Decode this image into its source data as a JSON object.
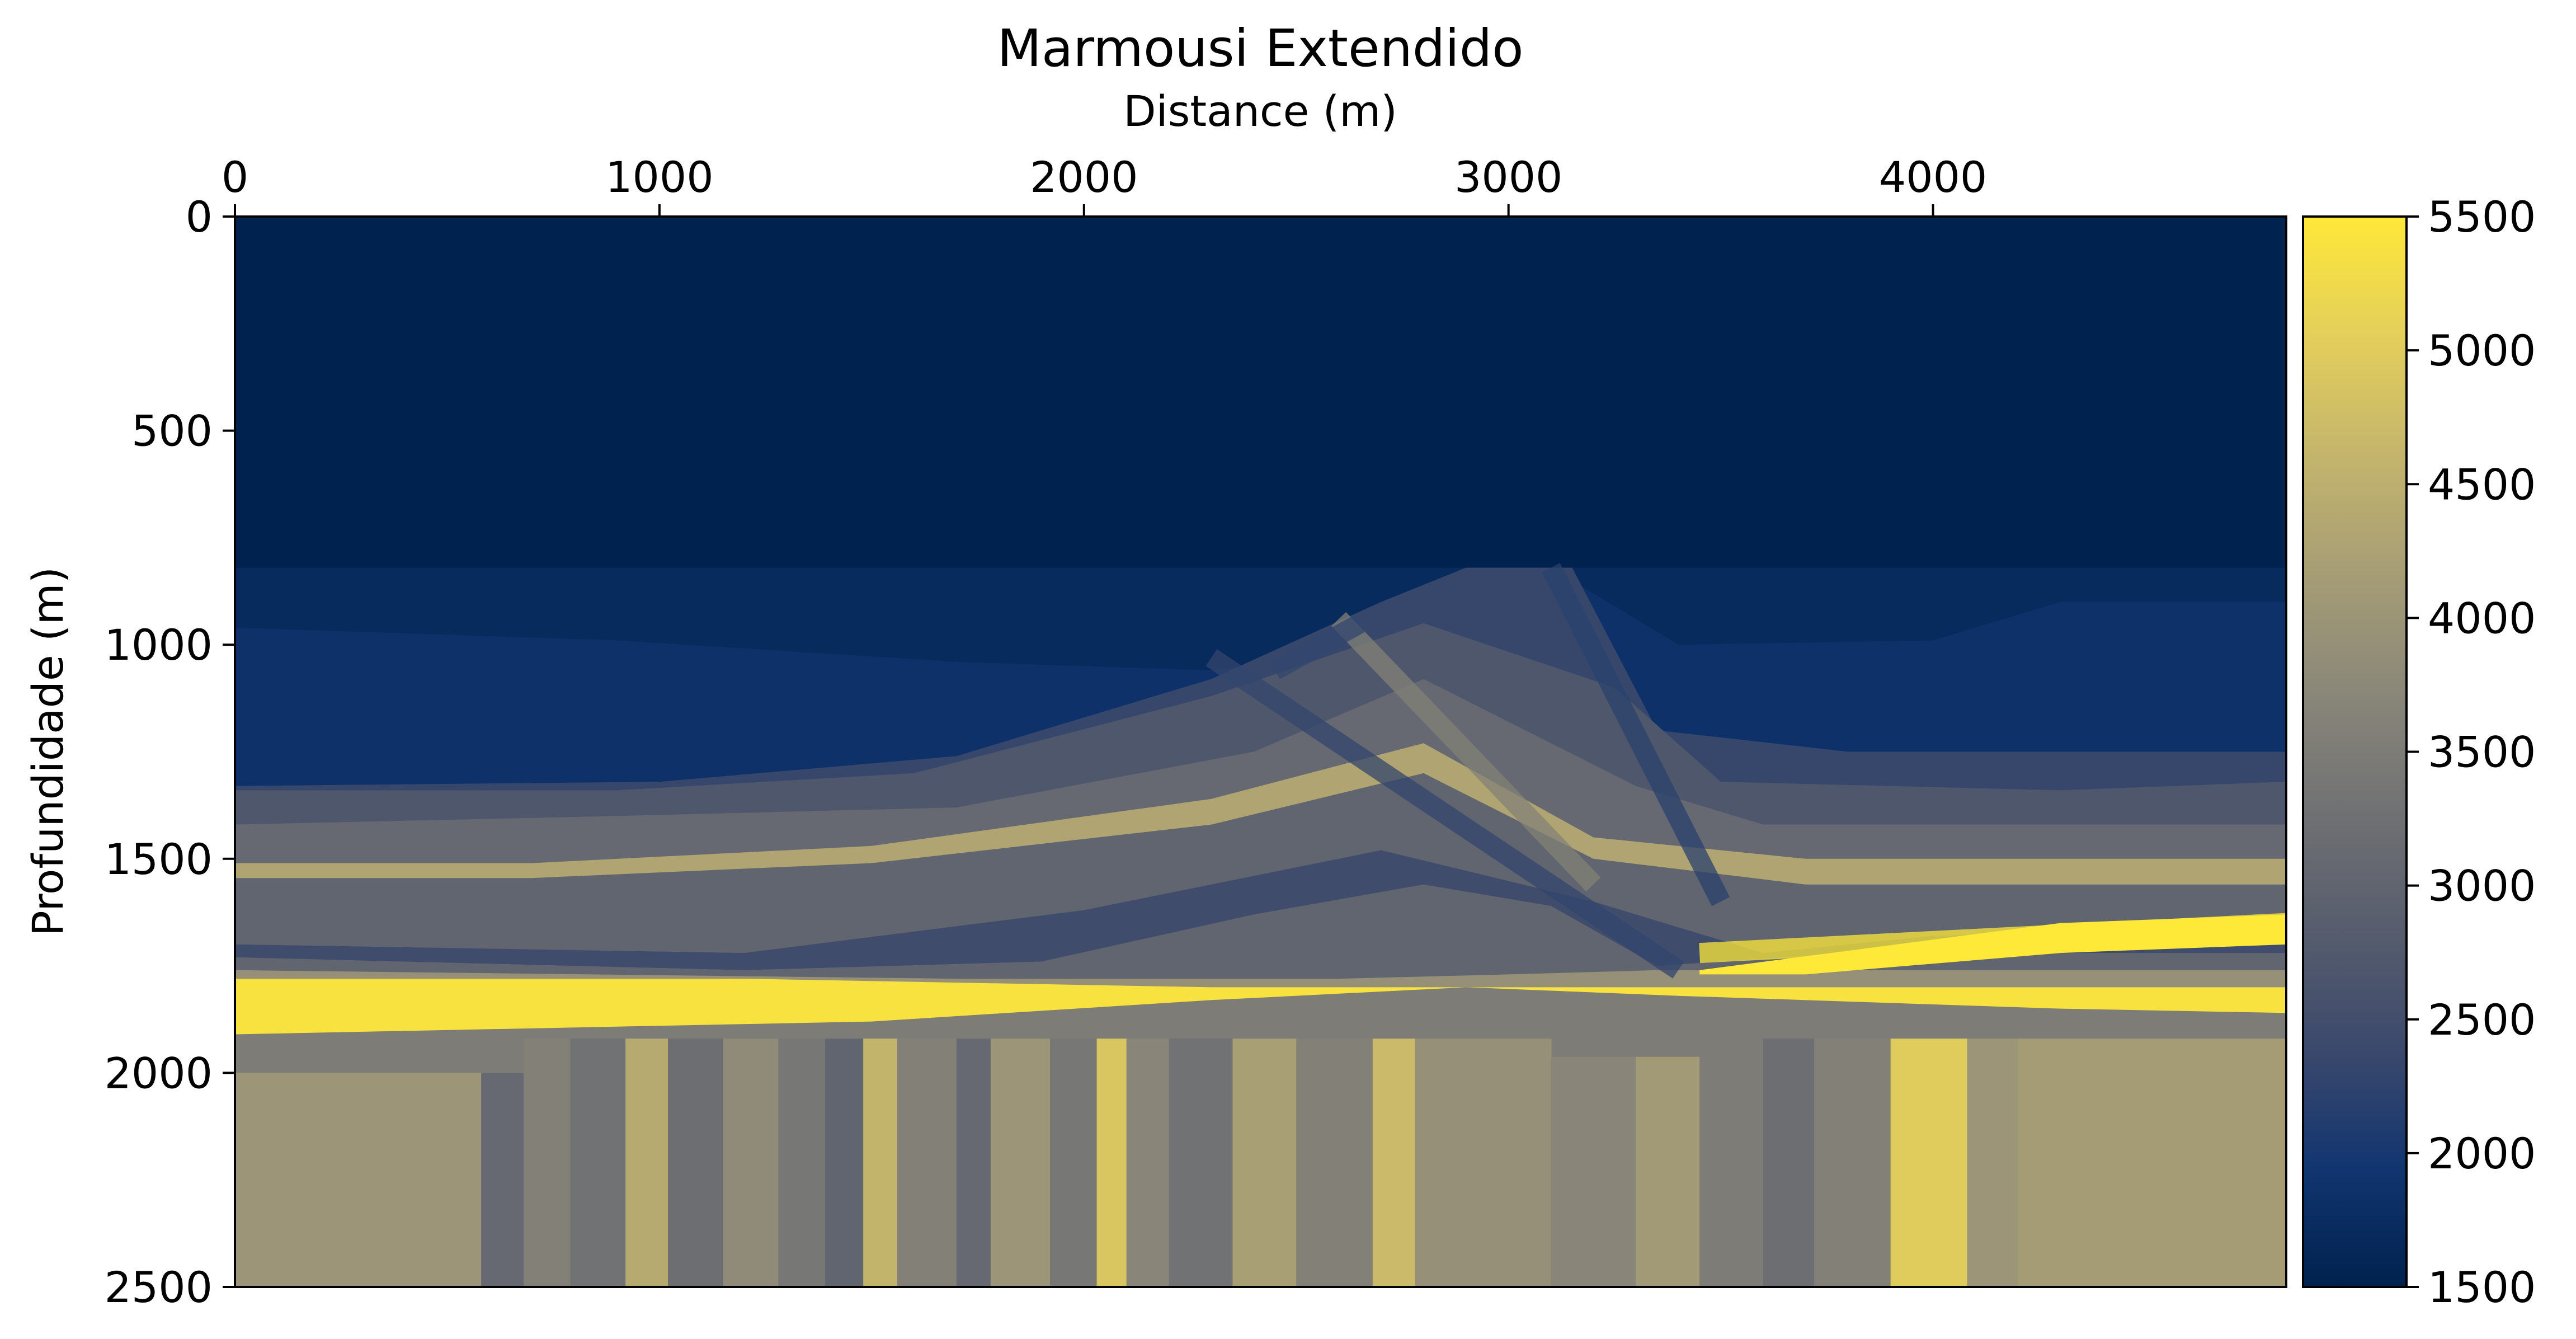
{
  "chart_data": {
    "type": "heatmap",
    "title": "Marmousi Extendido",
    "xlabel": "Distance (m)",
    "ylabel": "Profundidade (m)",
    "x_axis_position": "top",
    "xlim": [
      0,
      4832
    ],
    "ylim": [
      2500,
      0
    ],
    "xticks": [
      0,
      1000,
      2000,
      3000,
      4000
    ],
    "xtick_labels": [
      "0",
      "1000",
      "2000",
      "3000",
      "4000"
    ],
    "yticks": [
      0,
      500,
      1000,
      1500,
      2000,
      2500
    ],
    "ytick_labels": [
      "0",
      "500",
      "1000",
      "1500",
      "2000",
      "2500"
    ],
    "grid": false,
    "colormap": "cividis",
    "colorbar": {
      "range": [
        1500,
        5500
      ],
      "ticks": [
        1500,
        2000,
        2500,
        3000,
        3500,
        4000,
        4500,
        5000,
        5500
      ],
      "tick_labels": [
        "1500",
        "2000",
        "2500",
        "3000",
        "3500",
        "4000",
        "4500",
        "5000",
        "5500"
      ],
      "position": "right"
    },
    "colormap_stops": [
      "#00224e",
      "#123570",
      "#3b496c",
      "#575d6d",
      "#707173",
      "#8a8779",
      "#a69d75",
      "#c4b56c",
      "#e4cf5b",
      "#fee838"
    ],
    "layers": [
      {
        "name": "water",
        "top": [
          [
            0,
            0
          ],
          [
            4832,
            0
          ]
        ],
        "value": 1500
      },
      {
        "name": "upper-sediment-a",
        "top": [
          [
            0,
            820
          ],
          [
            1000,
            820
          ],
          [
            2300,
            820
          ],
          [
            3200,
            820
          ],
          [
            4100,
            820
          ],
          [
            4832,
            820
          ]
        ],
        "value": 1700
      },
      {
        "name": "upper-sediment-b",
        "top": [
          [
            0,
            960
          ],
          [
            900,
            990
          ],
          [
            1700,
            1040
          ],
          [
            2300,
            1060
          ],
          [
            2600,
            1020
          ],
          [
            2900,
            820
          ],
          [
            3100,
            820
          ],
          [
            3400,
            1000
          ],
          [
            4000,
            990
          ],
          [
            4300,
            900
          ],
          [
            4832,
            900
          ]
        ],
        "value": 1850
      },
      {
        "name": "upper-sediment-c",
        "top": [
          [
            0,
            1330
          ],
          [
            1000,
            1320
          ],
          [
            1700,
            1260
          ],
          [
            2300,
            1080
          ],
          [
            2700,
            900
          ],
          [
            2900,
            820
          ],
          [
            3150,
            820
          ],
          [
            3350,
            1200
          ],
          [
            3800,
            1250
          ],
          [
            4300,
            1250
          ],
          [
            4832,
            1250
          ]
        ],
        "value": 2350
      },
      {
        "name": "gray-sequence-a",
        "top": [
          [
            0,
            1340
          ],
          [
            900,
            1340
          ],
          [
            1600,
            1300
          ],
          [
            2300,
            1120
          ],
          [
            2800,
            950
          ],
          [
            3250,
            1100
          ],
          [
            3500,
            1320
          ],
          [
            4300,
            1340
          ],
          [
            4832,
            1320
          ]
        ],
        "value": 2700
      },
      {
        "name": "gray-sequence-b",
        "top": [
          [
            0,
            1420
          ],
          [
            900,
            1400
          ],
          [
            1700,
            1380
          ],
          [
            2400,
            1250
          ],
          [
            2800,
            1080
          ],
          [
            3300,
            1330
          ],
          [
            3600,
            1420
          ],
          [
            4400,
            1420
          ],
          [
            4832,
            1420
          ]
        ],
        "value": 3100
      },
      {
        "name": "tan-band-upper",
        "top": [
          [
            0,
            1510
          ],
          [
            700,
            1510
          ],
          [
            1500,
            1470
          ],
          [
            2300,
            1360
          ],
          [
            2800,
            1230
          ],
          [
            3200,
            1450
          ],
          [
            3700,
            1500
          ],
          [
            4400,
            1500
          ],
          [
            4832,
            1500
          ]
        ],
        "value": 4300
      },
      {
        "name": "gray-sequence-c",
        "top": [
          [
            0,
            1545
          ],
          [
            700,
            1545
          ],
          [
            1500,
            1510
          ],
          [
            2300,
            1420
          ],
          [
            2800,
            1300
          ],
          [
            3200,
            1500
          ],
          [
            3700,
            1560
          ],
          [
            4400,
            1560
          ],
          [
            4832,
            1560
          ]
        ],
        "value": 3000
      },
      {
        "name": "dark-wedge",
        "top": [
          [
            0,
            1700
          ],
          [
            1200,
            1720
          ],
          [
            2000,
            1620
          ],
          [
            2700,
            1480
          ],
          [
            3200,
            1600
          ],
          [
            3600,
            1720
          ],
          [
            4000,
            1680
          ],
          [
            4832,
            1660
          ]
        ],
        "value": 2450
      },
      {
        "name": "gray-sequence-d",
        "top": [
          [
            0,
            1730
          ],
          [
            1200,
            1760
          ],
          [
            1900,
            1740
          ],
          [
            2400,
            1630
          ],
          [
            2800,
            1560
          ],
          [
            3100,
            1610
          ],
          [
            3350,
            1750
          ],
          [
            3800,
            1720
          ],
          [
            4832,
            1720
          ]
        ],
        "value": 3000
      },
      {
        "name": "tan-dome",
        "top": [
          [
            0,
            1760
          ],
          [
            1700,
            1780
          ],
          [
            2600,
            1780
          ],
          [
            3000,
            1770
          ],
          [
            3350,
            1760
          ],
          [
            4300,
            1760
          ],
          [
            4832,
            1760
          ]
        ],
        "value": 3900
      },
      {
        "name": "bright-reservoir",
        "top": [
          [
            0,
            1780
          ],
          [
            1200,
            1780
          ],
          [
            2300,
            1800
          ],
          [
            3200,
            1800
          ],
          [
            4000,
            1800
          ],
          [
            4832,
            1800
          ]
        ],
        "value": 5400
      },
      {
        "name": "gray-sequence-e",
        "top": [
          [
            0,
            1910
          ],
          [
            1500,
            1880
          ],
          [
            2300,
            1830
          ],
          [
            2900,
            1800
          ],
          [
            3400,
            1820
          ],
          [
            4300,
            1850
          ],
          [
            4832,
            1860
          ]
        ],
        "value": 3500
      },
      {
        "name": "deep-basement",
        "top": [
          [
            0,
            2000
          ],
          [
            1000,
            2000
          ],
          [
            2000,
            2000
          ],
          [
            3000,
            2000
          ],
          [
            4000,
            2000
          ],
          [
            4832,
            2000
          ]
        ],
        "value": 4000
      }
    ],
    "bright_band_right": {
      "value": 5500
    },
    "deep_vertical_stripes": [
      {
        "x": [
          580,
          680
        ],
        "value": 3100
      },
      {
        "x": [
          680,
          790
        ],
        "value": 3600
      },
      {
        "x": [
          790,
          920
        ],
        "value": 3300
      },
      {
        "x": [
          920,
          1020
        ],
        "value": 4400
      },
      {
        "x": [
          1020,
          1150
        ],
        "value": 3200
      },
      {
        "x": [
          1150,
          1280
        ],
        "value": 3800
      },
      {
        "x": [
          1280,
          1390
        ],
        "value": 3400
      },
      {
        "x": [
          1390,
          1480
        ],
        "value": 3000
      },
      {
        "x": [
          1480,
          1560
        ],
        "value": 4600
      },
      {
        "x": [
          1560,
          1700
        ],
        "value": 3600
      },
      {
        "x": [
          1700,
          1780
        ],
        "value": 3100
      },
      {
        "x": [
          1780,
          1920
        ],
        "value": 4000
      },
      {
        "x": [
          1920,
          2030
        ],
        "value": 3400
      },
      {
        "x": [
          2030,
          2100
        ],
        "value": 4900
      },
      {
        "x": [
          2100,
          2200
        ],
        "value": 3700
      },
      {
        "x": [
          2200,
          2350
        ],
        "value": 3300
      },
      {
        "x": [
          2350,
          2500
        ],
        "value": 4200
      },
      {
        "x": [
          2500,
          2680
        ],
        "value": 3600
      },
      {
        "x": [
          2680,
          2780
        ],
        "value": 4700
      },
      {
        "x": [
          2780,
          2880
        ],
        "value": 3900
      },
      {
        "x": [
          2880,
          3100
        ],
        "value": 3900
      },
      {
        "x": [
          3100,
          3300
        ],
        "value": 3700
      },
      {
        "x": [
          3300,
          3450
        ],
        "value": 4100
      },
      {
        "x": [
          3450,
          3600
        ],
        "value": 3500
      },
      {
        "x": [
          3600,
          3720
        ],
        "value": 3200
      },
      {
        "x": [
          3720,
          3900
        ],
        "value": 3600
      },
      {
        "x": [
          3900,
          4080
        ],
        "value": 5000
      },
      {
        "x": [
          4080,
          4200
        ],
        "value": 4000
      },
      {
        "x": [
          4200,
          4832
        ],
        "value": 4150
      }
    ],
    "diagonal_fault_features": [
      {
        "from": [
          2300,
          1030
        ],
        "to": [
          3400,
          1760
        ],
        "value": 2300
      },
      {
        "from": [
          2600,
          940
        ],
        "to": [
          3200,
          1560
        ],
        "value": 3600
      },
      {
        "from": [
          2450,
          1060
        ],
        "to": [
          2650,
          950
        ],
        "value": 2300
      },
      {
        "from": [
          3100,
          820
        ],
        "to": [
          3500,
          1600
        ],
        "value": 2200
      },
      {
        "from": [
          3450,
          1720
        ],
        "to": [
          4832,
          1650
        ],
        "value": 5500
      }
    ]
  }
}
